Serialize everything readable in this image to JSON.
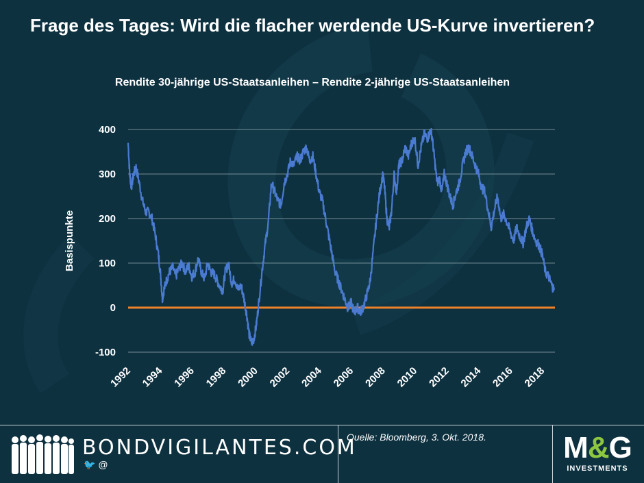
{
  "page": {
    "title": "Frage des Tages: Wird die flacher werdende US-Kurve invertieren?"
  },
  "colors": {
    "background": "#0e3140",
    "series": "#4a7bd0",
    "zero_line": "#f0822a",
    "grid": "#c8d4d8"
  },
  "footer": {
    "brand": "BONDVIGILANTES.COM",
    "social": "🐦 @",
    "source": "Quelle: Bloomberg, 3. Okt. 2018.",
    "logo_main": "M&G",
    "logo_sub": "INVESTMENTS"
  },
  "chart_data": {
    "type": "line",
    "title": "Rendite 30-jährige US-Staatsanleihen – Rendite 2-jährige US-Staatsanleihen",
    "xlabel": "",
    "ylabel": "Basispunkte",
    "xlim": [
      1992,
      2018.8
    ],
    "ylim": [
      -100,
      400
    ],
    "yticks": [
      -100,
      0,
      100,
      200,
      300,
      400
    ],
    "xticks": [
      "1992",
      "1994",
      "1996",
      "1998",
      "2000",
      "2002",
      "2004",
      "2006",
      "2008",
      "2010",
      "2012",
      "2014",
      "2016",
      "2018"
    ],
    "grid": true,
    "legend": "none",
    "reference_line": 0,
    "series": [
      {
        "x": [
          1992.0,
          1992.1,
          1992.2,
          1992.35,
          1992.5,
          1992.7,
          1992.9,
          1993.1,
          1993.3,
          1993.5,
          1993.7,
          1993.9,
          1994.05,
          1994.15,
          1994.25,
          1994.4,
          1994.6,
          1994.8,
          1995.0,
          1995.2,
          1995.4,
          1995.6,
          1995.8,
          1996.0,
          1996.2,
          1996.4,
          1996.6,
          1996.8,
          1997.0,
          1997.2,
          1997.4,
          1997.6,
          1997.8,
          1997.95,
          1998.1,
          1998.3,
          1998.5,
          1998.7,
          1998.9,
          1999.1,
          1999.3,
          1999.45,
          1999.6,
          1999.75,
          1999.9,
          2000.05,
          2000.2,
          2000.4,
          2000.6,
          2000.8,
          2001.0,
          2001.2,
          2001.4,
          2001.6,
          2001.8,
          2002.0,
          2002.2,
          2002.4,
          2002.6,
          2002.8,
          2003.0,
          2003.2,
          2003.4,
          2003.6,
          2003.8,
          2004.0,
          2004.2,
          2004.4,
          2004.6,
          2004.8,
          2005.0,
          2005.2,
          2005.4,
          2005.6,
          2005.8,
          2006.0,
          2006.2,
          2006.4,
          2006.6,
          2006.8,
          2007.0,
          2007.2,
          2007.4,
          2007.6,
          2007.8,
          2008.0,
          2008.1,
          2008.25,
          2008.4,
          2008.55,
          2008.7,
          2008.85,
          2009.0,
          2009.2,
          2009.4,
          2009.6,
          2009.8,
          2010.0,
          2010.2,
          2010.4,
          2010.6,
          2010.8,
          2011.0,
          2011.1,
          2011.25,
          2011.4,
          2011.55,
          2011.7,
          2011.85,
          2012.0,
          2012.2,
          2012.4,
          2012.6,
          2012.8,
          2013.0,
          2013.2,
          2013.4,
          2013.6,
          2013.8,
          2014.0,
          2014.2,
          2014.4,
          2014.6,
          2014.8,
          2015.0,
          2015.2,
          2015.4,
          2015.6,
          2015.8,
          2016.0,
          2016.2,
          2016.4,
          2016.6,
          2016.8,
          2017.0,
          2017.2,
          2017.4,
          2017.6,
          2017.8,
          2018.0,
          2018.2,
          2018.4,
          2018.6,
          2018.75
        ],
        "values": [
          370,
          300,
          270,
          300,
          315,
          280,
          240,
          215,
          215,
          200,
          165,
          120,
          70,
          20,
          40,
          60,
          80,
          90,
          70,
          90,
          100,
          80,
          95,
          70,
          80,
          110,
          80,
          65,
          100,
          80,
          75,
          60,
          45,
          40,
          80,
          100,
          55,
          65,
          40,
          50,
          15,
          -15,
          -60,
          -80,
          -70,
          -40,
          10,
          80,
          140,
          190,
          280,
          260,
          240,
          230,
          280,
          300,
          330,
          320,
          340,
          330,
          350,
          360,
          330,
          340,
          300,
          260,
          240,
          200,
          160,
          120,
          80,
          60,
          40,
          20,
          0,
          10,
          -10,
          0,
          -10,
          5,
          30,
          60,
          130,
          200,
          260,
          300,
          270,
          200,
          180,
          220,
          300,
          260,
          320,
          330,
          360,
          340,
          370,
          380,
          320,
          360,
          390,
          380,
          400,
          380,
          330,
          280,
          290,
          260,
          300,
          280,
          250,
          230,
          260,
          280,
          320,
          350,
          360,
          340,
          320,
          300,
          270,
          260,
          220,
          180,
          220,
          250,
          200,
          210,
          190,
          170,
          150,
          180,
          160,
          145,
          180,
          200,
          170,
          150,
          140,
          120,
          80,
          70,
          50,
          40
        ]
      }
    ]
  }
}
